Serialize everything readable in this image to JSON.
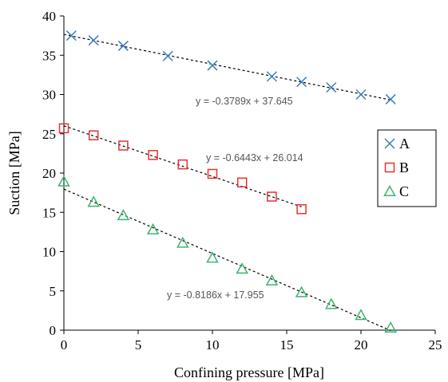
{
  "chart_data": {
    "type": "scatter",
    "xlabel": "Confining pressure [MPa]",
    "ylabel": "Suction [MPa]",
    "xlim": [
      0,
      25
    ],
    "ylim": [
      0,
      40
    ],
    "xticks": [
      0,
      5,
      10,
      15,
      20,
      25
    ],
    "yticks": [
      0,
      5,
      10,
      15,
      20,
      25,
      30,
      35,
      40
    ],
    "grid": false,
    "legend_position": "right",
    "series": [
      {
        "name": "A",
        "marker": "x",
        "color": "#3a7bbf",
        "x": [
          0.5,
          2,
          4,
          7,
          10,
          14,
          16,
          18,
          20,
          22
        ],
        "y": [
          37.5,
          36.9,
          36.2,
          34.9,
          33.7,
          32.3,
          31.6,
          30.9,
          30.0,
          29.4
        ],
        "trend": {
          "slope": -0.3789,
          "intercept": 37.645,
          "x_range": [
            0,
            22
          ],
          "label": "y = -0.3789x + 37.645"
        }
      },
      {
        "name": "B",
        "marker": "square",
        "color": "#e8312f",
        "x": [
          0,
          2,
          4,
          6,
          8,
          10,
          12,
          14,
          16
        ],
        "y": [
          25.7,
          24.8,
          23.5,
          22.3,
          21.1,
          19.9,
          18.8,
          17.0,
          15.4
        ],
        "trend": {
          "slope": -0.6443,
          "intercept": 26.014,
          "x_range": [
            0,
            16
          ],
          "label": "y = -0.6443x + 26.014"
        }
      },
      {
        "name": "C",
        "marker": "triangle",
        "color": "#3cb46e",
        "x": [
          0,
          2,
          4,
          6,
          8,
          10,
          12,
          14,
          16,
          18,
          20,
          22
        ],
        "y": [
          18.9,
          16.3,
          14.6,
          12.8,
          11.1,
          9.2,
          7.8,
          6.3,
          4.8,
          3.3,
          1.9,
          0.3
        ],
        "trend": {
          "slope": -0.8186,
          "intercept": 17.955,
          "x_range": [
            0,
            22
          ],
          "label": "y = -0.8186x + 17.955"
        }
      }
    ]
  }
}
